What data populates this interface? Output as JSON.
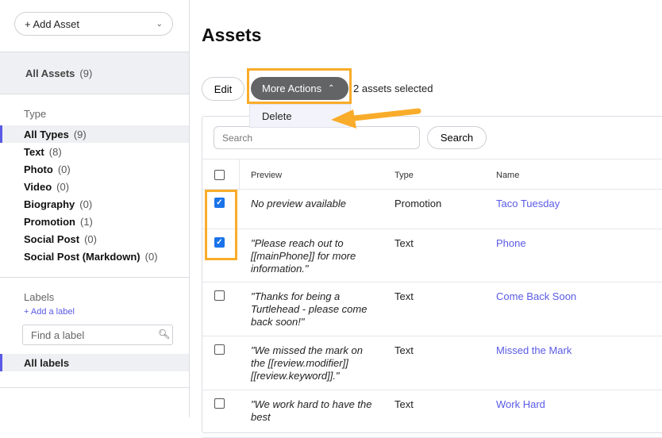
{
  "sidebar": {
    "add_asset": "+ Add Asset",
    "all_assets": {
      "label": "All Assets",
      "count": "(9)"
    },
    "type_title": "Type",
    "types": [
      {
        "label": "All Types",
        "count": "(9)",
        "active": true
      },
      {
        "label": "Text",
        "count": "(8)"
      },
      {
        "label": "Photo",
        "count": "(0)"
      },
      {
        "label": "Video",
        "count": "(0)"
      },
      {
        "label": "Biography",
        "count": "(0)"
      },
      {
        "label": "Promotion",
        "count": "(1)"
      },
      {
        "label": "Social Post",
        "count": "(0)"
      },
      {
        "label": "Social Post (Markdown)",
        "count": "(0)"
      }
    ],
    "labels_title": "Labels",
    "add_label": "+ Add a label",
    "find_placeholder": "Find a label",
    "all_labels": "All labels"
  },
  "main": {
    "title": "Assets",
    "edit": "Edit",
    "more_actions": "More Actions",
    "selected_text": "2 assets selected",
    "dropdown": [
      "Delete"
    ],
    "search_placeholder": "Search",
    "search_button": "Search",
    "columns": [
      "Preview",
      "Type",
      "Name"
    ],
    "rows": [
      {
        "checked": true,
        "preview": "No preview available",
        "type": "Promotion",
        "name": "Taco Tuesday"
      },
      {
        "checked": true,
        "preview": "\"Please reach out to [[mainPhone]] for more information.\"",
        "type": "Text",
        "name": "Phone"
      },
      {
        "checked": false,
        "preview": "\"Thanks for being a Turtlehead - please come back soon!\"",
        "type": "Text",
        "name": "Come Back Soon"
      },
      {
        "checked": false,
        "preview": "\"We missed the mark on the [[review.modifier]] [[review.keyword]].\"",
        "type": "Text",
        "name": "Missed the Mark"
      },
      {
        "checked": false,
        "preview": "\"We work hard to have the best",
        "type": "Text",
        "name": "Work Hard"
      }
    ]
  },
  "colors": {
    "accent": "#5a5ae6",
    "highlight": "#f9ac2a",
    "checkbox": "#1a73e8",
    "button_dark": "#636466"
  }
}
